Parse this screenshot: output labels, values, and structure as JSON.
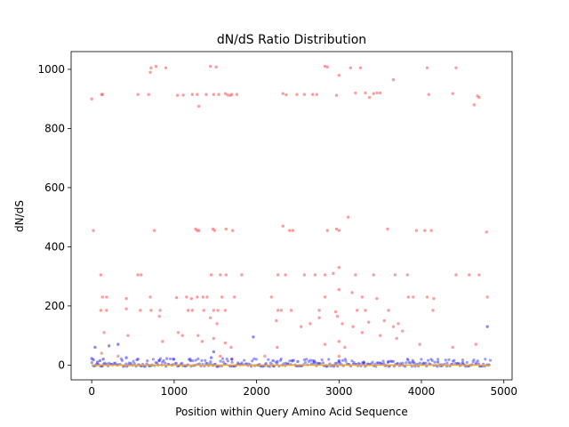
{
  "chart_data": {
    "type": "scatter",
    "title": "dN/dS Ratio Distribution",
    "xlabel": "Position within Query Amino Acid Sequence",
    "ylabel": "dN/dS",
    "xlim": [
      -250,
      5100
    ],
    "ylim": [
      -50,
      1060
    ],
    "xticks": [
      0,
      1000,
      2000,
      3000,
      4000,
      5000
    ],
    "yticks": [
      0,
      200,
      400,
      600,
      800,
      1000
    ],
    "grid": false,
    "colors": {
      "high": "#ff4d4d",
      "low": "#2424ff",
      "baseline": "#ffa500"
    },
    "series": [
      {
        "color": "#ff4d4d",
        "points": [
          [
            0,
            900
          ],
          [
            120,
            915
          ],
          [
            130,
            915
          ],
          [
            560,
            915
          ],
          [
            690,
            915
          ],
          [
            710,
            990
          ],
          [
            720,
            1005
          ],
          [
            780,
            1010
          ],
          [
            900,
            1005
          ],
          [
            1040,
            912
          ],
          [
            1110,
            913
          ],
          [
            1220,
            915
          ],
          [
            1280,
            915
          ],
          [
            1300,
            875
          ],
          [
            1390,
            915
          ],
          [
            1440,
            1010
          ],
          [
            1480,
            915
          ],
          [
            1510,
            1008
          ],
          [
            1540,
            915
          ],
          [
            1620,
            918
          ],
          [
            1650,
            913
          ],
          [
            1680,
            912
          ],
          [
            1700,
            915
          ],
          [
            1760,
            915
          ],
          [
            2320,
            918
          ],
          [
            2360,
            914
          ],
          [
            2490,
            915
          ],
          [
            2580,
            915
          ],
          [
            2680,
            915
          ],
          [
            2730,
            915
          ],
          [
            2830,
            1010
          ],
          [
            2860,
            1008
          ],
          [
            2970,
            912
          ],
          [
            3000,
            980
          ],
          [
            3140,
            1005
          ],
          [
            3200,
            920
          ],
          [
            3260,
            1005
          ],
          [
            3320,
            920
          ],
          [
            3370,
            905
          ],
          [
            3420,
            918
          ],
          [
            3460,
            920
          ],
          [
            3500,
            920
          ],
          [
            3660,
            965
          ],
          [
            4070,
            1005
          ],
          [
            4090,
            915
          ],
          [
            4380,
            918
          ],
          [
            4420,
            1005
          ],
          [
            4640,
            880
          ],
          [
            4680,
            910
          ],
          [
            4700,
            905
          ],
          [
            20,
            455
          ],
          [
            760,
            455
          ],
          [
            1260,
            460
          ],
          [
            1280,
            455
          ],
          [
            1300,
            455
          ],
          [
            1470,
            460
          ],
          [
            1490,
            455
          ],
          [
            1630,
            460
          ],
          [
            1710,
            455
          ],
          [
            2320,
            470
          ],
          [
            2400,
            455
          ],
          [
            2440,
            455
          ],
          [
            2860,
            455
          ],
          [
            2970,
            460
          ],
          [
            3000,
            455
          ],
          [
            3110,
            500
          ],
          [
            3590,
            460
          ],
          [
            3940,
            455
          ],
          [
            4040,
            455
          ],
          [
            4120,
            455
          ],
          [
            4790,
            450
          ],
          [
            110,
            305
          ],
          [
            560,
            305
          ],
          [
            600,
            305
          ],
          [
            1450,
            305
          ],
          [
            1560,
            305
          ],
          [
            1630,
            305
          ],
          [
            1820,
            305
          ],
          [
            2260,
            305
          ],
          [
            2350,
            305
          ],
          [
            2580,
            305
          ],
          [
            2710,
            305
          ],
          [
            2830,
            305
          ],
          [
            2930,
            310
          ],
          [
            3000,
            330
          ],
          [
            3200,
            305
          ],
          [
            3420,
            305
          ],
          [
            3680,
            305
          ],
          [
            3830,
            305
          ],
          [
            4420,
            305
          ],
          [
            4580,
            305
          ],
          [
            4700,
            305
          ],
          [
            130,
            230
          ],
          [
            180,
            230
          ],
          [
            420,
            225
          ],
          [
            710,
            230
          ],
          [
            1030,
            228
          ],
          [
            1150,
            230
          ],
          [
            1210,
            225
          ],
          [
            1280,
            230
          ],
          [
            1350,
            230
          ],
          [
            1400,
            230
          ],
          [
            1580,
            230
          ],
          [
            1730,
            230
          ],
          [
            2180,
            230
          ],
          [
            2830,
            230
          ],
          [
            3000,
            255
          ],
          [
            3160,
            245
          ],
          [
            3280,
            230
          ],
          [
            3460,
            225
          ],
          [
            3840,
            230
          ],
          [
            3900,
            230
          ],
          [
            4070,
            230
          ],
          [
            4150,
            225
          ],
          [
            4800,
            230
          ],
          [
            110,
            185
          ],
          [
            180,
            185
          ],
          [
            420,
            190
          ],
          [
            590,
            185
          ],
          [
            720,
            185
          ],
          [
            830,
            185
          ],
          [
            1170,
            185
          ],
          [
            1220,
            185
          ],
          [
            1360,
            185
          ],
          [
            1480,
            185
          ],
          [
            1530,
            185
          ],
          [
            1620,
            185
          ],
          [
            2260,
            185
          ],
          [
            2300,
            185
          ],
          [
            2420,
            185
          ],
          [
            2760,
            185
          ],
          [
            2960,
            180
          ],
          [
            3220,
            185
          ],
          [
            3320,
            185
          ],
          [
            3600,
            185
          ],
          [
            4140,
            185
          ],
          [
            820,
            165
          ],
          [
            1050,
            110
          ],
          [
            1290,
            100
          ],
          [
            1440,
            160
          ],
          [
            1520,
            140
          ],
          [
            2240,
            150
          ],
          [
            2540,
            130
          ],
          [
            2650,
            140
          ],
          [
            2760,
            160
          ],
          [
            2980,
            165
          ],
          [
            3040,
            140
          ],
          [
            3170,
            130
          ],
          [
            3360,
            145
          ],
          [
            3550,
            150
          ],
          [
            3660,
            130
          ],
          [
            3720,
            140
          ],
          [
            3770,
            115
          ],
          [
            3280,
            110
          ],
          [
            3500,
            100
          ],
          [
            150,
            110
          ],
          [
            440,
            100
          ],
          [
            860,
            80
          ],
          [
            1100,
            100
          ],
          [
            1340,
            80
          ],
          [
            1480,
            90
          ],
          [
            1620,
            75
          ],
          [
            1690,
            60
          ],
          [
            2250,
            60
          ],
          [
            2830,
            70
          ],
          [
            3000,
            80
          ],
          [
            3070,
            60
          ],
          [
            3700,
            90
          ],
          [
            3980,
            70
          ],
          [
            4660,
            70
          ],
          [
            4380,
            60
          ],
          [
            120,
            40
          ],
          [
            320,
            30
          ],
          [
            1560,
            30
          ],
          [
            1700,
            20
          ],
          [
            2100,
            30
          ],
          [
            3000,
            30
          ]
        ]
      },
      {
        "color": "#2424ff",
        "points": [
          [
            0,
            22
          ],
          [
            20,
            18
          ],
          [
            40,
            60
          ],
          [
            70,
            10
          ],
          [
            100,
            15
          ],
          [
            140,
            20
          ],
          [
            210,
            65
          ],
          [
            320,
            70
          ],
          [
            420,
            25
          ],
          [
            560,
            20
          ],
          [
            820,
            15
          ],
          [
            990,
            20
          ],
          [
            1200,
            15
          ],
          [
            1450,
            25
          ],
          [
            1480,
            45
          ],
          [
            1700,
            20
          ],
          [
            1960,
            95
          ],
          [
            2200,
            15
          ],
          [
            2500,
            12
          ],
          [
            2700,
            10
          ],
          [
            3000,
            15
          ],
          [
            3300,
            10
          ],
          [
            3600,
            12
          ],
          [
            3900,
            10
          ],
          [
            4200,
            10
          ],
          [
            4500,
            8
          ],
          [
            4800,
            130
          ]
        ]
      }
    ],
    "baseline": {
      "value": 0
    },
    "dense_band": {
      "from": 0,
      "to": 4840,
      "ymin": -5,
      "ymax": 22
    }
  }
}
